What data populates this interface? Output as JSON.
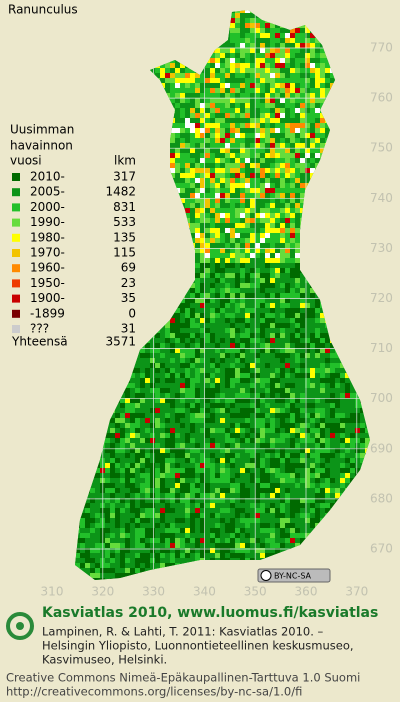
{
  "title": "Ranunculus",
  "legend": {
    "heading": [
      "Uusimman",
      "havainnon",
      "vuosi"
    ],
    "count_heading": "lkm",
    "rows": [
      {
        "label": "2010-",
        "count": 317,
        "color": "#006a00"
      },
      {
        "label": "2005-",
        "count": 1482,
        "color": "#0c9418"
      },
      {
        "label": "2000-",
        "count": 831,
        "color": "#22c02a"
      },
      {
        "label": "1990-",
        "count": 533,
        "color": "#66dc3c"
      },
      {
        "label": "1980-",
        "count": 135,
        "color": "#ffff00"
      },
      {
        "label": "1970-",
        "count": 115,
        "color": "#f2c400"
      },
      {
        "label": "1960-",
        "count": 69,
        "color": "#ff8a00"
      },
      {
        "label": "1950-",
        "count": 23,
        "color": "#ee3a00"
      },
      {
        "label": "1900-",
        "count": 35,
        "color": "#c80000"
      },
      {
        "label": "-1899",
        "count": 0,
        "color": "#7a0000"
      },
      {
        "label": "???",
        "count": 31,
        "color": "#cccccc"
      }
    ],
    "total_label": "Yhteensä",
    "total": 3571
  },
  "map": {
    "northing": [
      770,
      760,
      750,
      740,
      730,
      720,
      710,
      700,
      690,
      680,
      670
    ],
    "easting": [
      310,
      320,
      330,
      340,
      350,
      360,
      370
    ],
    "license_badge": "BY-NC-SA"
  },
  "footer": {
    "site": "Kasviatlas 2010, www.luomus.fi/kasviatlas",
    "citation": [
      "Lampinen, R. & Lahti, T. 2011: Kasviatlas 2010. –",
      "Helsingin Yliopisto, Luonnontieteellinen keskusmuseo,",
      "Kasvimuseo, Helsinki."
    ],
    "license": [
      "Creative Commons Nimeä-Epäkaupallinen-Tarttuva 1.0 Suomi",
      "http://creativecommons.org/licenses/by-nc-sa/1.0/fi"
    ]
  }
}
